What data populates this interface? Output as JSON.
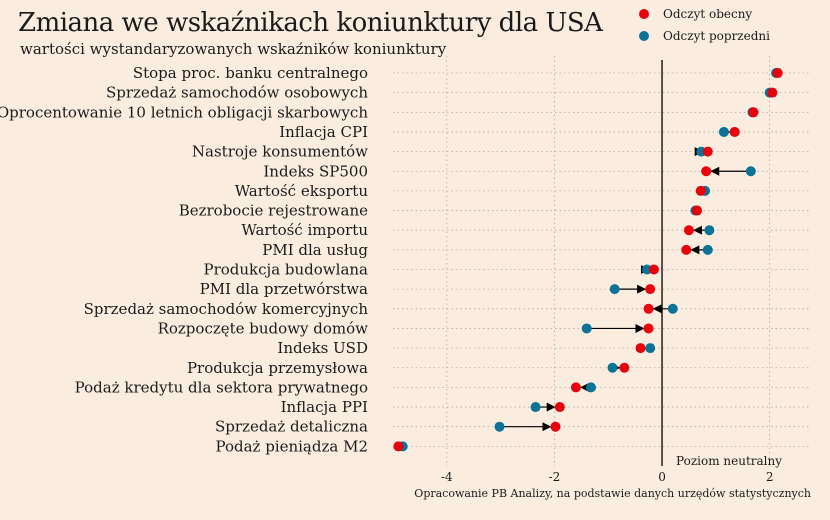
{
  "chart_data": {
    "type": "dumbbell",
    "title": "Zmiana we wskaźnikach koniunktury dla USA",
    "subtitle": "wartości wystandaryzowanych wskaźników koniunktury",
    "source": "Opracowanie PB Analizy, na podstawie danych urzędów statystycznych",
    "reference_label": "Poziom neutralny",
    "xlim": [
      -5.0,
      2.75
    ],
    "xticks": [
      -4,
      -2,
      0,
      2
    ],
    "grid": "dotted",
    "legend_position": "top-right",
    "colors": {
      "current": "#E8000B",
      "previous": "#0A7396",
      "arrow": "#000000",
      "zero_line": "#000000",
      "grid": "#B5A99D",
      "background": "#FAEDE0"
    },
    "legend": [
      {
        "key": "current",
        "label": "Odczyt obecny"
      },
      {
        "key": "previous",
        "label": "Odczyt poprzedni"
      }
    ],
    "categories": [
      "Stopa proc. banku centralnego",
      "Sprzedaż samochodów osobowych",
      "Oprocentowanie 10 letnich obligacji skarbowych",
      "Inflacja CPI",
      "Nastroje konsumentów",
      "Indeks SP500",
      "Wartość eksportu",
      "Bezrobocie rejestrowane",
      "Wartość importu",
      "PMI dla usług",
      "Produkcja budowlana",
      "PMI dla przetwórstwa",
      "Sprzedaż samochodów komercyjnych",
      "Rozpoczęte budowy domów",
      "Indeks USD",
      "Produkcja przemysłowa",
      "Podaż kredytu dla sektora prywatnego",
      "Inflacja PPI",
      "Sprzedaż detaliczna",
      "Podaż pieniądza M2"
    ],
    "series": [
      {
        "name": "Odczyt obecny",
        "values": [
          2.15,
          2.05,
          1.7,
          1.35,
          0.85,
          0.82,
          0.72,
          0.65,
          0.5,
          0.45,
          -0.15,
          -0.22,
          -0.25,
          -0.25,
          -0.4,
          -0.7,
          -1.6,
          -1.9,
          -1.98,
          -4.9
        ]
      },
      {
        "name": "Odczyt poprzedni",
        "values": [
          2.12,
          2.0,
          1.68,
          1.15,
          0.73,
          1.65,
          0.8,
          0.62,
          0.88,
          0.85,
          -0.28,
          -0.88,
          0.2,
          -1.4,
          -0.22,
          -0.92,
          -1.32,
          -2.35,
          -3.02,
          -4.82
        ]
      }
    ]
  }
}
